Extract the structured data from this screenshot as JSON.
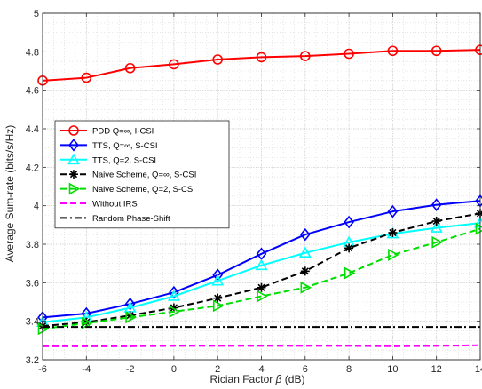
{
  "chart_data": {
    "type": "line",
    "title": "",
    "xlabel_prefix": "Rician Factor ",
    "xlabel_symbol": "β",
    "xlabel_suffix": " (dB)",
    "ylabel": "Average Sum-rate (bits/s/Hz)",
    "xlim": [
      -6,
      14
    ],
    "ylim": [
      3.2,
      5.0
    ],
    "x_ticks": [
      -6,
      -4,
      -2,
      0,
      2,
      4,
      6,
      8,
      10,
      12,
      14
    ],
    "x_tick_labels": [
      "-6",
      "-4",
      "-2",
      "0",
      "2",
      "4",
      "6",
      "8",
      "10",
      "12",
      "14"
    ],
    "y_ticks": [
      3.2,
      3.4,
      3.6,
      3.8,
      4.0,
      4.2,
      4.4,
      4.6,
      4.8,
      5.0
    ],
    "y_tick_labels": [
      "3.2",
      "3.4",
      "3.6",
      "3.8",
      "4",
      "4.2",
      "4.4",
      "4.6",
      "4.8",
      "5"
    ],
    "grid": true,
    "legend_position": "upper-left",
    "x": [
      -6,
      -4,
      -2,
      0,
      2,
      4,
      6,
      8,
      10,
      12,
      14
    ],
    "series": [
      {
        "name": "PDD Q=∞, I-CSI",
        "color": "#ff0000",
        "dash": "solid",
        "marker": "circle",
        "values": [
          4.65,
          4.665,
          4.715,
          4.735,
          4.76,
          4.772,
          4.778,
          4.79,
          4.805,
          4.805,
          4.81
        ]
      },
      {
        "name": "TTS, Q=∞, S-CSI",
        "color": "#0000ff",
        "dash": "solid",
        "marker": "diamond",
        "values": [
          3.42,
          3.44,
          3.49,
          3.55,
          3.64,
          3.75,
          3.85,
          3.915,
          3.97,
          4.005,
          4.025
        ]
      },
      {
        "name": "TTS, Q=2, S-CSI",
        "color": "#00ffff",
        "dash": "solid",
        "marker": "triangle-up",
        "values": [
          3.395,
          3.42,
          3.47,
          3.53,
          3.61,
          3.69,
          3.755,
          3.81,
          3.855,
          3.885,
          3.91
        ]
      },
      {
        "name": "Naive Scheme, Q=∞, S-CSI",
        "color": "#000000",
        "dash": "dashed",
        "marker": "asterisk",
        "values": [
          3.375,
          3.395,
          3.43,
          3.47,
          3.52,
          3.575,
          3.66,
          3.78,
          3.86,
          3.92,
          3.96
        ]
      },
      {
        "name": "Naive Scheme, Q=2, S-CSI",
        "color": "#00dd00",
        "dash": "dashed",
        "marker": "triangle-right",
        "values": [
          3.36,
          3.39,
          3.42,
          3.45,
          3.48,
          3.53,
          3.575,
          3.65,
          3.745,
          3.81,
          3.88
        ]
      },
      {
        "name": "Without IRS",
        "color": "#ff00ff",
        "dash": "dashed",
        "marker": "none",
        "values": [
          3.27,
          3.27,
          3.27,
          3.272,
          3.272,
          3.272,
          3.272,
          3.272,
          3.27,
          3.272,
          3.275
        ]
      },
      {
        "name": "Random Phase-Shift",
        "color": "#000000",
        "dash": "dashdot",
        "marker": "none",
        "values": [
          3.37,
          3.37,
          3.37,
          3.37,
          3.37,
          3.37,
          3.37,
          3.37,
          3.37,
          3.37,
          3.37
        ]
      }
    ]
  }
}
